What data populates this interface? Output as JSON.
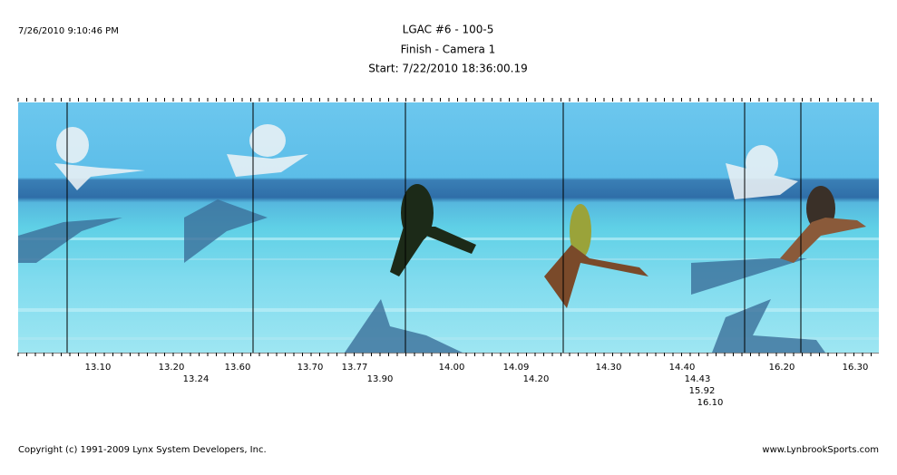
{
  "header": {
    "timestamp": "7/26/2010 9:10:46 PM",
    "title": "LGAC #6 - 100-5",
    "subtitle": "Finish - Camera 1",
    "start": "Start: 7/22/2010 18:36:00.19"
  },
  "time_labels": [
    "13.10",
    "13.20",
    "13.24",
    "13.60",
    "13.70",
    "13.77",
    "13.90",
    "14.00",
    "14.09",
    "14.20",
    "14.30",
    "14.40",
    "14.43",
    "15.92",
    "16.10",
    "16.20",
    "16.30"
  ],
  "footer": {
    "copyright": "Copyright (c) 1991-2009 Lynx System Developers, Inc.",
    "website": "www.LynbrookSports.com"
  }
}
